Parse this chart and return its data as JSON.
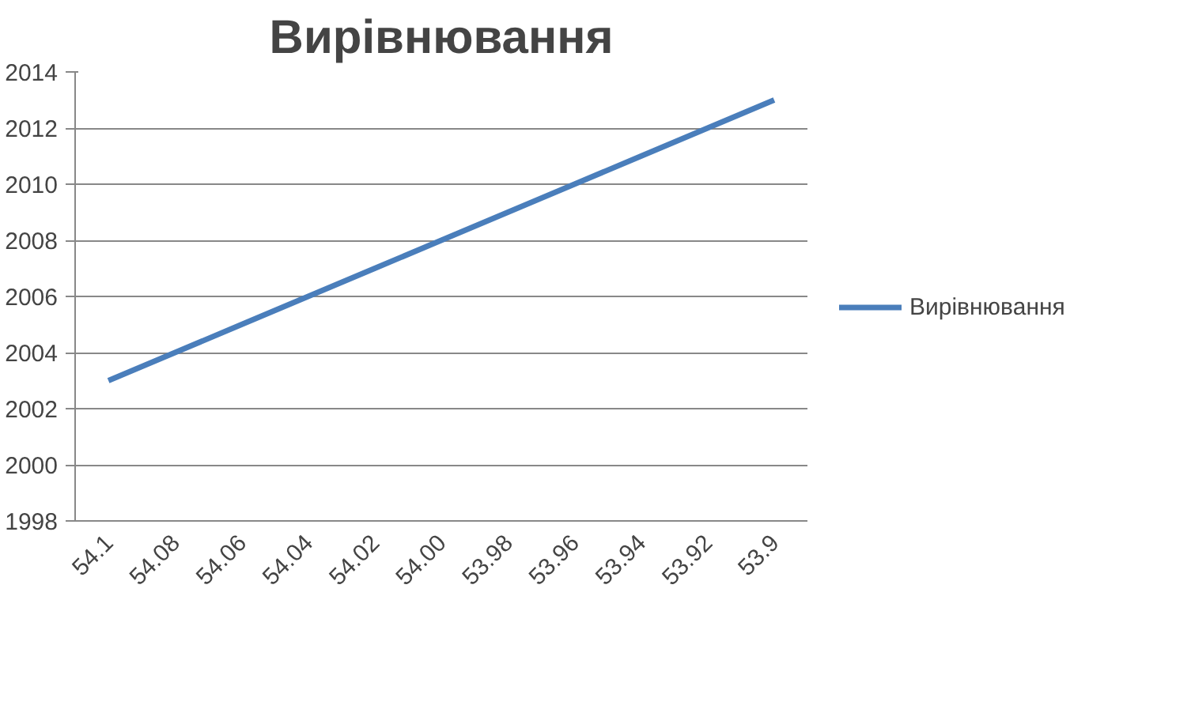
{
  "chart_data": {
    "type": "line",
    "title": "Вирівнювання",
    "categories": [
      "54.1",
      "54.08",
      "54.06",
      "54.04",
      "54.02",
      "54.00",
      "53.98",
      "53.96",
      "53.94",
      "53.92",
      "53.9"
    ],
    "series": [
      {
        "name": "Вирівнювання",
        "color": "#4a7ebb",
        "values": [
          2003,
          2004,
          2005,
          2006,
          2007,
          2008,
          2009,
          2010,
          2011,
          2012,
          2013
        ]
      }
    ],
    "ylim": [
      1998,
      2014
    ],
    "yticks": [
      1998,
      2000,
      2002,
      2004,
      2006,
      2008,
      2010,
      2012,
      2014
    ],
    "grid": "y",
    "legend": "right",
    "marker": "none",
    "line_style": "solid"
  }
}
